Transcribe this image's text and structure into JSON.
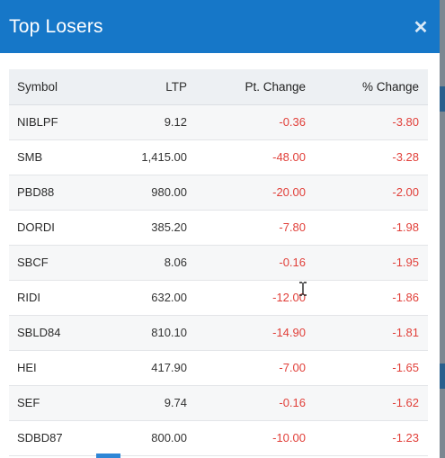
{
  "modal": {
    "title": "Top Losers",
    "close_symbol": "✕"
  },
  "table": {
    "headers": {
      "symbol": "Symbol",
      "ltp": "LTP",
      "pt_change": "Pt. Change",
      "pct_change": "% Change"
    },
    "rows": [
      {
        "symbol": "NIBLPF",
        "ltp": "9.12",
        "pt_change": "-0.36",
        "pct_change": "-3.80"
      },
      {
        "symbol": "SMB",
        "ltp": "1,415.00",
        "pt_change": "-48.00",
        "pct_change": "-3.28"
      },
      {
        "symbol": "PBD88",
        "ltp": "980.00",
        "pt_change": "-20.00",
        "pct_change": "-2.00"
      },
      {
        "symbol": "DORDI",
        "ltp": "385.20",
        "pt_change": "-7.80",
        "pct_change": "-1.98"
      },
      {
        "symbol": "SBCF",
        "ltp": "8.06",
        "pt_change": "-0.16",
        "pct_change": "-1.95"
      },
      {
        "symbol": "RIDI",
        "ltp": "632.00",
        "pt_change": "-12.00",
        "pct_change": "-1.86"
      },
      {
        "symbol": "SBLD84",
        "ltp": "810.10",
        "pt_change": "-14.90",
        "pct_change": "-1.81"
      },
      {
        "symbol": "HEI",
        "ltp": "417.90",
        "pt_change": "-7.00",
        "pct_change": "-1.65"
      },
      {
        "symbol": "SEF",
        "ltp": "9.74",
        "pt_change": "-0.16",
        "pct_change": "-1.62"
      },
      {
        "symbol": "SDBD87",
        "ltp": "800.00",
        "pt_change": "-10.00",
        "pct_change": "-1.23"
      }
    ]
  },
  "colors": {
    "header_bg": "#1677c8",
    "negative": "#e1403a"
  },
  "icons": {
    "close": "close-icon",
    "cursor": "text-cursor-icon"
  }
}
